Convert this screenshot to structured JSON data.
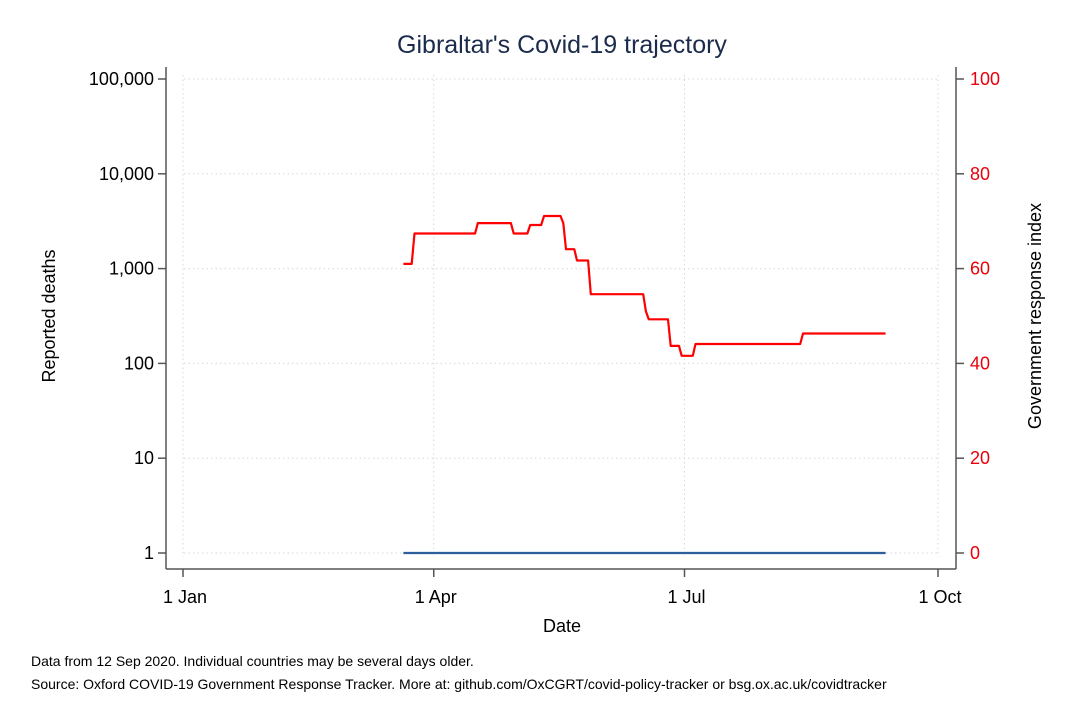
{
  "chart_data": {
    "type": "line",
    "title": "Gibraltar's Covid-19 trajectory",
    "xlabel": "Date",
    "ylabel": "Reported deaths",
    "y2label": "Government response index",
    "x_range": [
      "2020-01-01",
      "2020-10-01"
    ],
    "x_ticks": [
      {
        "date": "2020-01-01",
        "label": "1 Jan"
      },
      {
        "date": "2020-04-01",
        "label": "1 Apr"
      },
      {
        "date": "2020-07-01",
        "label": "1 Jul"
      },
      {
        "date": "2020-10-01",
        "label": "1 Oct"
      }
    ],
    "y_scale": "log",
    "ylim": [
      1,
      100000
    ],
    "y_ticks": [
      {
        "value": 1,
        "label": "1"
      },
      {
        "value": 10,
        "label": "10"
      },
      {
        "value": 100,
        "label": "100"
      },
      {
        "value": 1000,
        "label": "1,000"
      },
      {
        "value": 10000,
        "label": "10,000"
      },
      {
        "value": 100000,
        "label": "100,000"
      }
    ],
    "y2lim": [
      0,
      100
    ],
    "y2_ticks": [
      {
        "value": 0,
        "label": "0"
      },
      {
        "value": 20,
        "label": "20"
      },
      {
        "value": 40,
        "label": "40"
      },
      {
        "value": 60,
        "label": "60"
      },
      {
        "value": 80,
        "label": "80"
      },
      {
        "value": 100,
        "label": "100"
      }
    ],
    "grid": true,
    "series": [
      {
        "axis": "left",
        "color": "#2e5e9c",
        "points": [
          [
            "2020-03-21",
            1
          ],
          [
            "2020-09-12",
            1
          ]
        ]
      },
      {
        "axis": "right",
        "color": "#ff0000",
        "points": [
          [
            "2020-03-21",
            61.0
          ],
          [
            "2020-03-24",
            61.0
          ],
          [
            "2020-03-25",
            67.4
          ],
          [
            "2020-04-16",
            67.4
          ],
          [
            "2020-04-17",
            69.6
          ],
          [
            "2020-04-29",
            69.6
          ],
          [
            "2020-04-30",
            67.4
          ],
          [
            "2020-05-05",
            67.4
          ],
          [
            "2020-05-06",
            69.2
          ],
          [
            "2020-05-10",
            69.2
          ],
          [
            "2020-05-11",
            71.1
          ],
          [
            "2020-05-17",
            71.1
          ],
          [
            "2020-05-18",
            69.6
          ],
          [
            "2020-05-19",
            64.1
          ],
          [
            "2020-05-22",
            64.1
          ],
          [
            "2020-05-23",
            61.7
          ],
          [
            "2020-05-27",
            61.7
          ],
          [
            "2020-05-28",
            54.6
          ],
          [
            "2020-06-16",
            54.6
          ],
          [
            "2020-06-17",
            51.0
          ],
          [
            "2020-06-18",
            49.3
          ],
          [
            "2020-06-25",
            49.3
          ],
          [
            "2020-06-26",
            43.7
          ],
          [
            "2020-06-29",
            43.7
          ],
          [
            "2020-06-30",
            41.6
          ],
          [
            "2020-07-04",
            41.6
          ],
          [
            "2020-07-05",
            44.1
          ],
          [
            "2020-08-12",
            44.1
          ],
          [
            "2020-08-13",
            46.3
          ],
          [
            "2020-09-12",
            46.3
          ]
        ]
      }
    ]
  },
  "notes": {
    "line1": "Data from 12 Sep 2020. Individual countries may be several days older.",
    "line2": "Source: Oxford COVID-19 Government Response Tracker. More at: github.com/OxCGRT/covid-policy-tracker or bsg.ox.ac.uk/covidtracker"
  },
  "colors": {
    "left_axis": "#000000",
    "right_axis": "#e8000b",
    "grid": "#d8d8d8",
    "frame": "#555555"
  }
}
